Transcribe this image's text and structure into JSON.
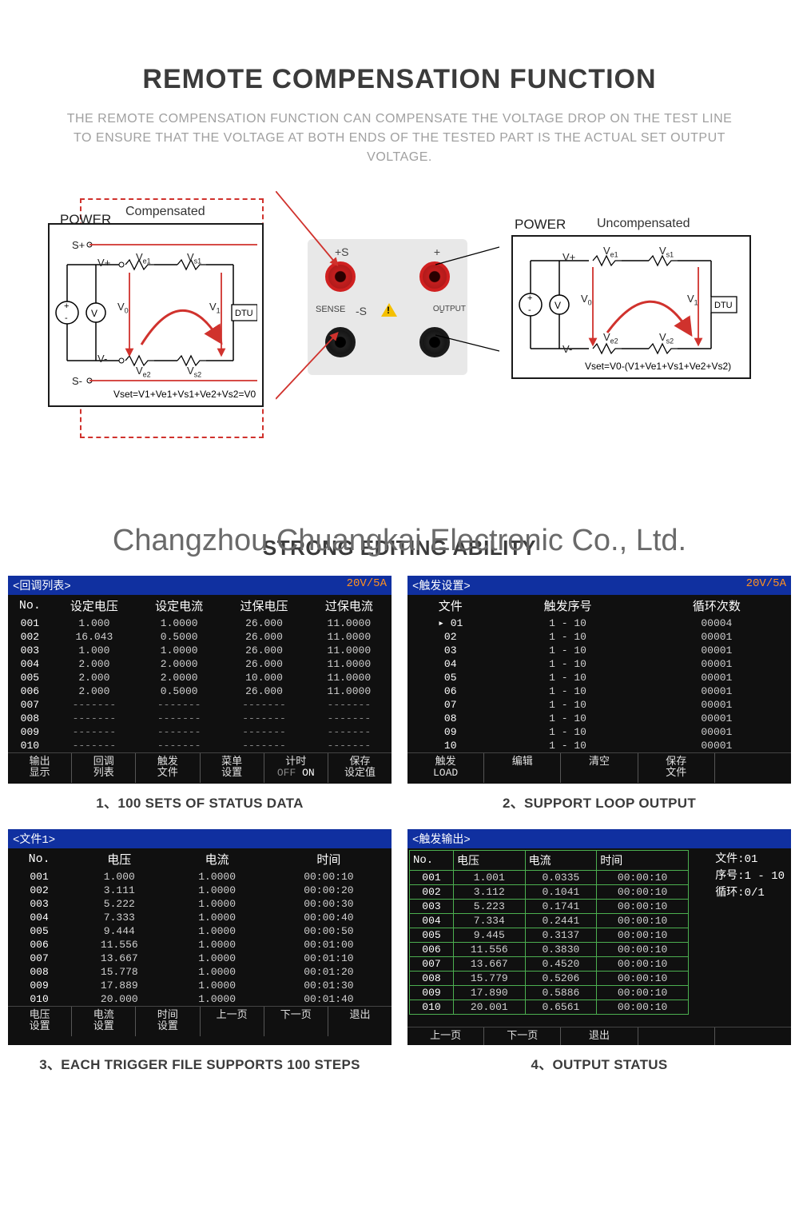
{
  "section1": {
    "title": "REMOTE COMPENSATION FUNCTION",
    "desc": "THE REMOTE COMPENSATION FUNCTION CAN COMPENSATE THE VOLTAGE DROP ON THE TEST LINE TO ENSURE THAT THE VOLTAGE AT BOTH ENDS OF THE TESTED PART IS THE ACTUAL SET OUTPUT VOLTAGE."
  },
  "diagram": {
    "power": "POWER",
    "compensated": "Compensated",
    "uncompensated": "Uncompensated",
    "sp": "S+",
    "sm": "S-",
    "vp": "V+",
    "vm": "V-",
    "ve1": "V",
    "ve1s": "e1",
    "ve2": "V",
    "ve2s": "e2",
    "vs1": "V",
    "vs1s": "s1",
    "vs2": "V",
    "vs2s": "s2",
    "v0": "V",
    "v0s": "0",
    "v1": "V",
    "v1s": "1",
    "dtu": "DTU",
    "eq_left": "Vset=V1+Ve1+Vs1+Ve2+Vs2=V0",
    "eq_right": "Vset=V0-(V1+Ve1+Vs1+Ve2+Vs2)",
    "ps": "+S",
    "ms": "-S",
    "plus": "+",
    "minus": "-",
    "sense": "SENSE",
    "output": "OUTPUT"
  },
  "watermark": "Changzhou Chuangkai Electronic Co., Ltd.",
  "section2_title": "STRONG EDITING ABILITY",
  "panel1": {
    "header": "<回调列表>",
    "rating": "20V/5A",
    "cols": [
      "No.",
      "设定电压",
      "设定电流",
      "过保电压",
      "过保电流"
    ],
    "rows": [
      [
        "001",
        "1.000",
        "1.0000",
        "26.000",
        "11.0000"
      ],
      [
        "002",
        "16.043",
        "0.5000",
        "26.000",
        "11.0000"
      ],
      [
        "003",
        "1.000",
        "1.0000",
        "26.000",
        "11.0000"
      ],
      [
        "004",
        "2.000",
        "2.0000",
        "26.000",
        "11.0000"
      ],
      [
        "005",
        "2.000",
        "2.0000",
        "10.000",
        "11.0000"
      ],
      [
        "006",
        "2.000",
        "0.5000",
        "26.000",
        "11.0000"
      ],
      [
        "007",
        "-------",
        "-------",
        "-------",
        "-------"
      ],
      [
        "008",
        "-------",
        "-------",
        "-------",
        "-------"
      ],
      [
        "009",
        "-------",
        "-------",
        "-------",
        "-------"
      ],
      [
        "010",
        "-------",
        "-------",
        "-------",
        "-------"
      ]
    ],
    "btns": [
      "输出\n显示",
      "回调\n列表",
      "触发\n文件",
      "菜单\n设置",
      "计时\nOFF ON",
      "保存\n设定值"
    ],
    "caption": "1、100 SETS OF STATUS DATA"
  },
  "panel2": {
    "header": "<触发设置>",
    "rating": "20V/5A",
    "cols": [
      "文件",
      "触发序号",
      "循环次数"
    ],
    "rows": [
      [
        "01",
        "1 - 10",
        "00004"
      ],
      [
        "02",
        "1 - 10",
        "00001"
      ],
      [
        "03",
        "1 - 10",
        "00001"
      ],
      [
        "04",
        "1 - 10",
        "00001"
      ],
      [
        "05",
        "1 - 10",
        "00001"
      ],
      [
        "06",
        "1 - 10",
        "00001"
      ],
      [
        "07",
        "1 - 10",
        "00001"
      ],
      [
        "08",
        "1 - 10",
        "00001"
      ],
      [
        "09",
        "1 - 10",
        "00001"
      ],
      [
        "10",
        "1 - 10",
        "00001"
      ]
    ],
    "btns": [
      "触发\nLOAD",
      "编辑",
      "清空",
      "保存\n文件",
      ""
    ],
    "pointer": "▸",
    "caption": "2、SUPPORT LOOP OUTPUT"
  },
  "panel3": {
    "header": "<文件1>",
    "cols": [
      "No.",
      "电压",
      "电流",
      "时间"
    ],
    "rows": [
      [
        "001",
        "1.000",
        "1.0000",
        "00:00:10"
      ],
      [
        "002",
        "3.111",
        "1.0000",
        "00:00:20"
      ],
      [
        "003",
        "5.222",
        "1.0000",
        "00:00:30"
      ],
      [
        "004",
        "7.333",
        "1.0000",
        "00:00:40"
      ],
      [
        "005",
        "9.444",
        "1.0000",
        "00:00:50"
      ],
      [
        "006",
        "11.556",
        "1.0000",
        "00:01:00"
      ],
      [
        "007",
        "13.667",
        "1.0000",
        "00:01:10"
      ],
      [
        "008",
        "15.778",
        "1.0000",
        "00:01:20"
      ],
      [
        "009",
        "17.889",
        "1.0000",
        "00:01:30"
      ],
      [
        "010",
        "20.000",
        "1.0000",
        "00:01:40"
      ]
    ],
    "btns": [
      "电压\n设置",
      "电流\n设置",
      "时间\n设置",
      "上一页",
      "下一页",
      "退出"
    ],
    "caption": "3、EACH TRIGGER FILE SUPPORTS 100 STEPS"
  },
  "panel4": {
    "header": "<触发输出>",
    "cols": [
      "No.",
      "电压",
      "电流",
      "时间"
    ],
    "rows": [
      [
        "001",
        "1.001",
        "0.0335",
        "00:00:10"
      ],
      [
        "002",
        "3.112",
        "0.1041",
        "00:00:10"
      ],
      [
        "003",
        "5.223",
        "0.1741",
        "00:00:10"
      ],
      [
        "004",
        "7.334",
        "0.2441",
        "00:00:10"
      ],
      [
        "005",
        "9.445",
        "0.3137",
        "00:00:10"
      ],
      [
        "006",
        "11.556",
        "0.3830",
        "00:00:10"
      ],
      [
        "007",
        "13.667",
        "0.4520",
        "00:00:10"
      ],
      [
        "008",
        "15.779",
        "0.5206",
        "00:00:10"
      ],
      [
        "009",
        "17.890",
        "0.5886",
        "00:00:10"
      ],
      [
        "010",
        "20.001",
        "0.6561",
        "00:00:10"
      ]
    ],
    "side": {
      "file": "文件:01",
      "seq": "序号:1 - 10",
      "loop": "循环:0/1"
    },
    "btns": [
      "上一页",
      "下一页",
      "退出",
      "",
      ""
    ],
    "caption": "4、OUTPUT STATUS"
  }
}
